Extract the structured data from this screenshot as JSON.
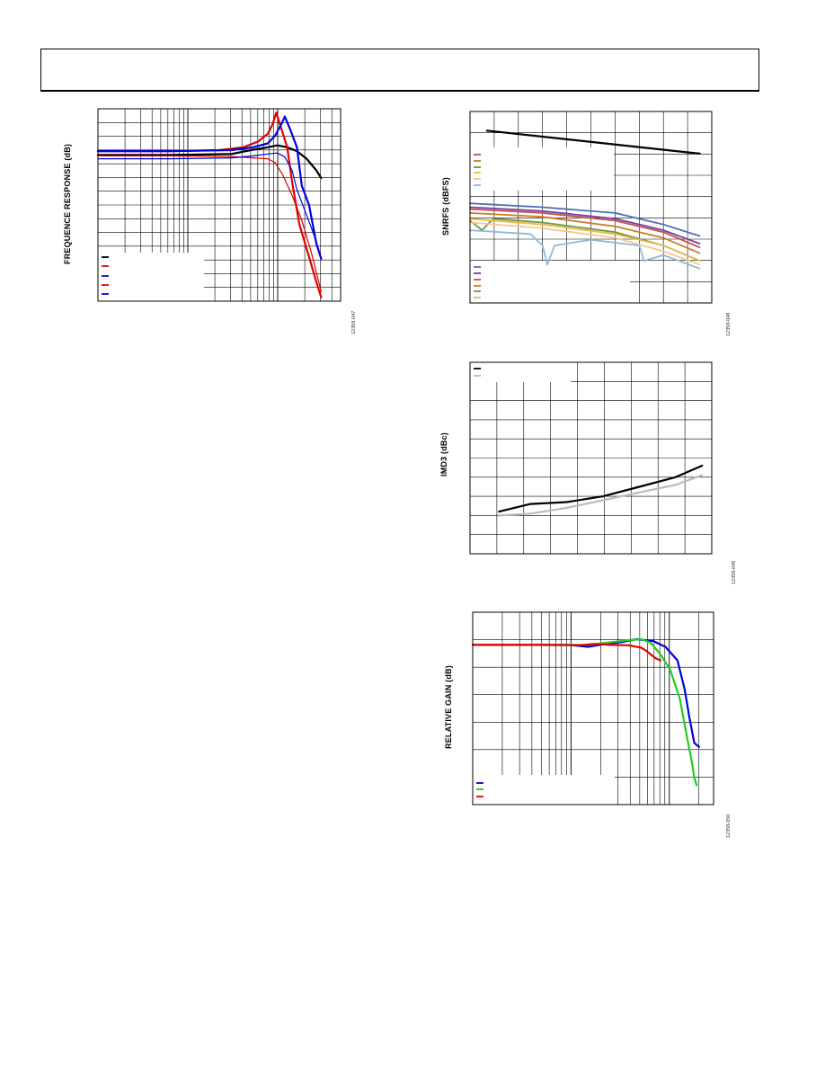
{
  "page": {
    "header": ""
  },
  "charts": [
    {
      "id": "c1",
      "ylabel": "FREQUENCE RESPONSE (dB)",
      "figid": "12358-047"
    },
    {
      "id": "c2",
      "ylabel": "SNRFS (dBFS)",
      "figid": "12358-048"
    },
    {
      "id": "c3",
      "ylabel": "IMD3 (dBc)",
      "figid": "12358-049"
    },
    {
      "id": "c4",
      "ylabel": "RELATIVE GAIN (dB)",
      "figid": "12358-050"
    }
  ],
  "chart_data": [
    {
      "type": "line",
      "ylabel": "FREQUENCE RESPONSE (dB)",
      "xscale": "log",
      "grid": true,
      "legend_position": "bottom-left",
      "series": [
        {
          "color": "#000000",
          "x": [
            0.0,
            0.3,
            0.55,
            0.63,
            0.7,
            0.74,
            0.78,
            0.82,
            0.86,
            0.9,
            0.92
          ],
          "y": [
            0.76,
            0.76,
            0.765,
            0.785,
            0.8,
            0.81,
            0.8,
            0.78,
            0.74,
            0.68,
            0.64
          ]
        },
        {
          "color": "#e00000",
          "x": [
            0.0,
            0.3,
            0.5,
            0.6,
            0.66,
            0.7,
            0.72,
            0.735,
            0.75,
            0.78,
            0.8,
            0.83,
            0.87,
            0.9,
            0.92
          ],
          "y": [
            0.78,
            0.78,
            0.785,
            0.8,
            0.83,
            0.87,
            0.92,
            0.98,
            0.92,
            0.8,
            0.62,
            0.4,
            0.23,
            0.1,
            0.02
          ]
        },
        {
          "color": "#0000dd",
          "x": [
            0.0,
            0.3,
            0.55,
            0.64,
            0.7,
            0.73,
            0.76,
            0.77,
            0.79,
            0.82,
            0.84,
            0.87,
            0.9,
            0.92
          ],
          "y": [
            0.78,
            0.78,
            0.785,
            0.8,
            0.82,
            0.86,
            0.93,
            0.96,
            0.9,
            0.8,
            0.6,
            0.5,
            0.3,
            0.22
          ]
        },
        {
          "color": "#e00000",
          "x": [
            0.0,
            0.3,
            0.55,
            0.64,
            0.7,
            0.73,
            0.76,
            0.8,
            0.84,
            0.88,
            0.92
          ],
          "y": [
            0.755,
            0.755,
            0.752,
            0.745,
            0.74,
            0.72,
            0.66,
            0.55,
            0.42,
            0.25,
            0.05
          ]
        },
        {
          "color": "#0000dd",
          "x": [
            0.0,
            0.3,
            0.55,
            0.64,
            0.7,
            0.74,
            0.77,
            0.8,
            0.82,
            0.85,
            0.88,
            0.91
          ],
          "y": [
            0.74,
            0.74,
            0.745,
            0.755,
            0.765,
            0.77,
            0.75,
            0.68,
            0.58,
            0.48,
            0.38,
            0.27
          ]
        }
      ]
    },
    {
      "type": "line",
      "ylabel": "SNRFS (dBFS)",
      "grid": true,
      "legend_position": "left",
      "series": [
        {
          "color": "#000000",
          "x": [
            0.07,
            0.95
          ],
          "y": [
            0.9,
            0.78
          ]
        },
        {
          "color": "#4a70b8",
          "x": [
            0.0,
            0.3,
            0.6,
            0.8,
            0.95
          ],
          "y": [
            0.52,
            0.5,
            0.47,
            0.41,
            0.35
          ]
        },
        {
          "color": "#7a3fa0",
          "x": [
            0.0,
            0.3,
            0.6,
            0.8,
            0.95
          ],
          "y": [
            0.5,
            0.48,
            0.44,
            0.38,
            0.31
          ]
        },
        {
          "color": "#c0504d",
          "x": [
            0.0,
            0.3,
            0.6,
            0.8,
            0.95
          ],
          "y": [
            0.49,
            0.47,
            0.43,
            0.37,
            0.29
          ]
        },
        {
          "color": "#d07a2a",
          "x": [
            0.0,
            0.3,
            0.6,
            0.8,
            0.95
          ],
          "y": [
            0.47,
            0.45,
            0.4,
            0.34,
            0.26
          ]
        },
        {
          "color": "#6b9a3c",
          "x": [
            0.0,
            0.05,
            0.08,
            0.1,
            0.3,
            0.6,
            0.8,
            0.95
          ],
          "y": [
            0.43,
            0.38,
            0.42,
            0.44,
            0.42,
            0.37,
            0.3,
            0.22
          ]
        },
        {
          "color": "#e8b84b",
          "x": [
            0.0,
            0.3,
            0.6,
            0.8,
            0.95
          ],
          "y": [
            0.44,
            0.41,
            0.36,
            0.3,
            0.22
          ]
        },
        {
          "color": "#f2c98a",
          "x": [
            0.0,
            0.3,
            0.6,
            0.8,
            0.95
          ],
          "y": [
            0.42,
            0.39,
            0.34,
            0.27,
            0.2
          ]
        },
        {
          "color": "#8fb6dd",
          "x": [
            0.0,
            0.25,
            0.3,
            0.32,
            0.35,
            0.5,
            0.7,
            0.72,
            0.8,
            0.95
          ],
          "y": [
            0.38,
            0.36,
            0.3,
            0.2,
            0.3,
            0.33,
            0.3,
            0.22,
            0.25,
            0.18
          ]
        }
      ]
    },
    {
      "type": "line",
      "ylabel": "IMD3 (dBc)",
      "grid": true,
      "legend_position": "top-left",
      "series": [
        {
          "color": "#000000",
          "x": [
            0.12,
            0.25,
            0.4,
            0.55,
            0.7,
            0.85,
            0.96
          ],
          "y": [
            0.22,
            0.26,
            0.27,
            0.3,
            0.35,
            0.4,
            0.46
          ]
        },
        {
          "color": "#bbbbbb",
          "x": [
            0.12,
            0.25,
            0.4,
            0.55,
            0.7,
            0.85,
            0.96
          ],
          "y": [
            0.2,
            0.21,
            0.24,
            0.28,
            0.32,
            0.36,
            0.41
          ]
        }
      ]
    },
    {
      "type": "line",
      "ylabel": "RELATIVE GAIN (dB)",
      "xscale": "log",
      "grid": true,
      "legend_position": "bottom-left",
      "series": [
        {
          "color": "#0000dd",
          "x": [
            0.0,
            0.3,
            0.4,
            0.48,
            0.55,
            0.62,
            0.68,
            0.75,
            0.8,
            0.85,
            0.88,
            0.9,
            0.92,
            0.94
          ],
          "y": [
            0.83,
            0.83,
            0.83,
            0.82,
            0.835,
            0.845,
            0.86,
            0.85,
            0.82,
            0.75,
            0.6,
            0.45,
            0.32,
            0.3
          ]
        },
        {
          "color": "#22cc22",
          "x": [
            0.0,
            0.3,
            0.48,
            0.58,
            0.65,
            0.7,
            0.74,
            0.78,
            0.82,
            0.86,
            0.89,
            0.91,
            0.92,
            0.93
          ],
          "y": [
            0.83,
            0.83,
            0.83,
            0.845,
            0.855,
            0.86,
            0.84,
            0.78,
            0.7,
            0.55,
            0.35,
            0.22,
            0.14,
            0.1
          ]
        },
        {
          "color": "#dd0000",
          "x": [
            0.0,
            0.3,
            0.45,
            0.5,
            0.58,
            0.65,
            0.7,
            0.72,
            0.74,
            0.76,
            0.78
          ],
          "y": [
            0.83,
            0.83,
            0.828,
            0.835,
            0.83,
            0.828,
            0.815,
            0.8,
            0.78,
            0.76,
            0.75
          ]
        }
      ]
    }
  ]
}
